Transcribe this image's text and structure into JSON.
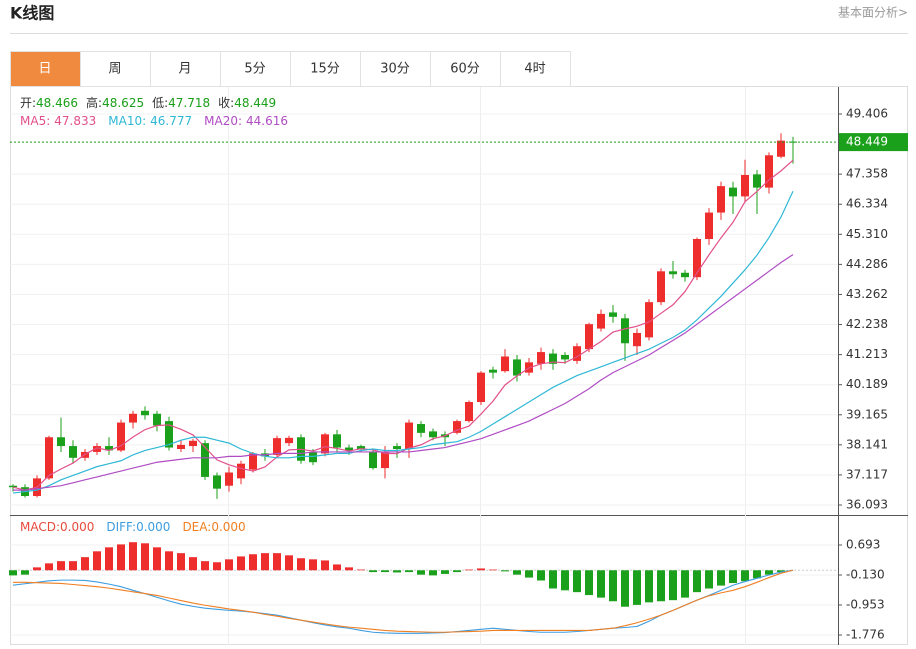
{
  "header": {
    "title": "K线图",
    "link": "基本面分析>"
  },
  "tabs": [
    "日",
    "周",
    "月",
    "5分",
    "15分",
    "30分",
    "60分",
    "4时"
  ],
  "active_tab": 0,
  "chart_data": [
    {
      "type": "candlestick",
      "up_color": "#ee2d2d",
      "down_color": "#1aa01a",
      "ohlc_labels": [
        "开:",
        "高:",
        "低:",
        "收:"
      ],
      "open": [
        36.75,
        36.7,
        36.4,
        37.0,
        38.4,
        38.1,
        37.7,
        37.9,
        38.1,
        37.95,
        38.9,
        39.3,
        39.2,
        38.95,
        38.0,
        38.1,
        38.2,
        37.1,
        36.75,
        37.0,
        37.3,
        37.85,
        37.8,
        38.2,
        38.4,
        37.9,
        37.85,
        38.5,
        38.05,
        38.1,
        37.9,
        37.35,
        38.1,
        38.0,
        38.85,
        38.6,
        38.5,
        38.55,
        38.95,
        39.6,
        40.7,
        40.65,
        41.05,
        40.6,
        40.9,
        41.25,
        41.2,
        41.0,
        41.4,
        42.1,
        42.65,
        42.45,
        41.5,
        41.8,
        43.0,
        44.05,
        44.0,
        43.85,
        45.15,
        46.05,
        46.9,
        46.6,
        47.35,
        46.9,
        47.95,
        48.466
      ],
      "high": [
        36.8,
        36.8,
        37.1,
        38.45,
        39.07,
        38.3,
        38.0,
        38.2,
        38.4,
        39.0,
        39.3,
        39.45,
        39.3,
        39.1,
        38.3,
        38.35,
        38.3,
        37.2,
        37.4,
        37.6,
        37.9,
        38.0,
        38.45,
        38.45,
        38.5,
        38.0,
        38.55,
        38.65,
        38.15,
        38.15,
        38.0,
        38.1,
        38.2,
        39.0,
        38.95,
        38.7,
        38.6,
        39.0,
        39.65,
        40.65,
        40.8,
        41.4,
        41.2,
        41.1,
        41.45,
        41.4,
        41.3,
        41.6,
        42.3,
        42.75,
        42.9,
        42.6,
        42.1,
        43.1,
        44.15,
        44.4,
        44.1,
        45.2,
        46.2,
        47.1,
        47.1,
        47.85,
        47.5,
        48.1,
        48.75,
        48.625
      ],
      "low": [
        36.55,
        36.35,
        36.35,
        36.95,
        37.9,
        37.5,
        37.6,
        37.8,
        37.8,
        37.9,
        38.7,
        39.0,
        38.6,
        37.95,
        37.9,
        37.9,
        36.95,
        36.3,
        36.55,
        36.8,
        37.2,
        37.6,
        37.7,
        38.1,
        37.5,
        37.45,
        37.75,
        37.9,
        37.8,
        37.9,
        37.3,
        37.0,
        37.7,
        37.7,
        38.4,
        38.3,
        38.1,
        38.5,
        38.9,
        39.5,
        40.4,
        40.6,
        40.3,
        40.5,
        40.7,
        40.7,
        40.9,
        40.9,
        41.3,
        42.0,
        42.3,
        41.0,
        41.2,
        41.7,
        42.9,
        43.8,
        43.7,
        43.75,
        44.95,
        45.8,
        46.0,
        46.4,
        46.0,
        46.7,
        47.9,
        47.718
      ],
      "close": [
        36.7,
        36.4,
        37.0,
        38.4,
        38.1,
        37.7,
        37.9,
        38.1,
        37.95,
        38.9,
        39.2,
        39.15,
        38.8,
        38.05,
        38.14,
        38.28,
        37.05,
        36.65,
        37.2,
        37.5,
        37.85,
        37.75,
        38.37,
        38.38,
        37.6,
        37.55,
        38.5,
        38.05,
        37.95,
        38.0,
        37.35,
        37.9,
        38.0,
        38.9,
        38.55,
        38.4,
        38.4,
        38.95,
        39.6,
        40.6,
        40.6,
        41.15,
        40.5,
        40.95,
        41.3,
        40.9,
        41.05,
        41.5,
        42.25,
        42.6,
        42.5,
        41.6,
        41.95,
        43.0,
        44.05,
        43.95,
        43.85,
        45.15,
        46.05,
        46.95,
        46.6,
        47.33,
        46.9,
        48.0,
        48.5,
        48.449
      ],
      "series": [
        {
          "name": "MA5:",
          "color": "#e2508a",
          "values": [
            36.7,
            36.6,
            36.7,
            37.1,
            37.32,
            37.52,
            37.82,
            38.04,
            37.95,
            38.11,
            38.41,
            38.66,
            38.8,
            38.82,
            38.67,
            38.48,
            38.06,
            37.63,
            37.46,
            37.34,
            37.25,
            37.39,
            37.73,
            37.97,
            37.99,
            37.93,
            38.08,
            38.02,
            37.93,
            38.01,
            37.97,
            37.85,
            37.84,
            38.03,
            38.14,
            38.35,
            38.45,
            38.64,
            38.78,
            39.19,
            39.63,
            40.18,
            40.49,
            40.76,
            40.9,
            40.96,
            40.94,
            41.14,
            41.4,
            41.66,
            41.98,
            42.09,
            42.18,
            42.33,
            42.62,
            42.91,
            43.36,
            44.0,
            44.61,
            45.19,
            45.72,
            46.42,
            46.77,
            47.16,
            47.47,
            47.833
          ]
        },
        {
          "name": "MA10:",
          "color": "#2fb8d6",
          "values": [
            36.5,
            36.55,
            36.6,
            36.75,
            36.95,
            37.1,
            37.25,
            37.4,
            37.5,
            37.6,
            37.8,
            37.95,
            38.05,
            38.15,
            38.3,
            38.4,
            38.4,
            38.3,
            38.2,
            38.0,
            37.85,
            37.75,
            37.7,
            37.7,
            37.75,
            37.75,
            37.8,
            37.85,
            37.85,
            37.95,
            38.0,
            37.95,
            37.95,
            38.0,
            38.05,
            38.15,
            38.2,
            38.25,
            38.4,
            38.6,
            38.85,
            39.1,
            39.35,
            39.6,
            39.85,
            40.1,
            40.3,
            40.5,
            40.65,
            40.8,
            40.95,
            41.1,
            41.25,
            41.4,
            41.6,
            41.8,
            42.05,
            42.4,
            42.8,
            43.2,
            43.65,
            44.1,
            44.6,
            45.2,
            45.9,
            46.777
          ]
        },
        {
          "name": "MA20:",
          "color": "#b04cc4",
          "values": [
            36.6,
            36.6,
            36.65,
            36.7,
            36.75,
            36.85,
            36.95,
            37.05,
            37.15,
            37.25,
            37.35,
            37.45,
            37.55,
            37.6,
            37.65,
            37.7,
            37.7,
            37.7,
            37.75,
            37.75,
            37.8,
            37.8,
            37.85,
            37.85,
            37.85,
            37.9,
            37.9,
            37.9,
            37.9,
            37.9,
            37.9,
            37.9,
            37.9,
            37.9,
            37.95,
            38.0,
            38.05,
            38.15,
            38.25,
            38.35,
            38.5,
            38.65,
            38.8,
            38.95,
            39.15,
            39.35,
            39.55,
            39.8,
            40.05,
            40.35,
            40.6,
            40.8,
            41.0,
            41.2,
            41.45,
            41.7,
            41.95,
            42.25,
            42.55,
            42.85,
            43.15,
            43.45,
            43.75,
            44.05,
            44.35,
            44.616
          ]
        }
      ],
      "ylim": [
        35.753,
        50.291
      ],
      "yticks": [
        36.093,
        37.117,
        38.141,
        39.165,
        40.189,
        41.213,
        42.238,
        43.262,
        44.286,
        {
          "value": 45.31,
          "label": "45.310"
        },
        46.334,
        47.358,
        49.406
      ],
      "grid": true
    },
    {
      "type": "macd",
      "up_color": "#ee2d2d",
      "down_color": "#1aa01a",
      "series": [
        {
          "name": "MACD:",
          "color": "#e84a3c",
          "kind": "histogram",
          "legend_value": {
            "value": 0,
            "label": "0.000"
          },
          "values": [
            -0.14,
            -0.12,
            0.08,
            0.19,
            0.25,
            0.25,
            0.36,
            0.52,
            0.63,
            0.71,
            0.77,
            0.74,
            0.63,
            0.52,
            0.47,
            0.36,
            0.25,
            0.22,
            0.3,
            0.38,
            0.44,
            0.47,
            0.47,
            0.41,
            0.33,
            0.3,
            0.27,
            0.16,
            0.08,
            0.02,
            -0.05,
            -0.05,
            -0.06,
            -0.05,
            -0.12,
            -0.14,
            -0.1,
            -0.05,
            0.02,
            0.05,
            0.02,
            -0.03,
            -0.12,
            -0.2,
            -0.28,
            -0.5,
            -0.55,
            -0.6,
            -0.68,
            -0.75,
            -0.85,
            -1.0,
            -0.95,
            -0.88,
            -0.85,
            -0.82,
            -0.75,
            -0.6,
            -0.5,
            -0.42,
            -0.35,
            -0.3,
            -0.22,
            -0.12,
            -0.05,
            0
          ]
        },
        {
          "name": "DIFF:",
          "color": "#3d9de0",
          "kind": "line",
          "legend_value": {
            "value": 0,
            "label": "0.000"
          },
          "values": [
            -0.41,
            -0.37,
            -0.33,
            -0.29,
            -0.27,
            -0.27,
            -0.28,
            -0.32,
            -0.38,
            -0.45,
            -0.55,
            -0.64,
            -0.74,
            -0.84,
            -0.93,
            -0.99,
            -1.04,
            -1.07,
            -1.1,
            -1.12,
            -1.15,
            -1.19,
            -1.23,
            -1.3,
            -1.37,
            -1.44,
            -1.5,
            -1.55,
            -1.59,
            -1.65,
            -1.7,
            -1.72,
            -1.73,
            -1.73,
            -1.73,
            -1.72,
            -1.71,
            -1.68,
            -1.65,
            -1.62,
            -1.59,
            -1.62,
            -1.65,
            -1.68,
            -1.7,
            -1.7,
            -1.7,
            -1.68,
            -1.65,
            -1.62,
            -1.59,
            -1.57,
            -1.54,
            -1.4,
            -1.23,
            -1.1,
            -0.96,
            -0.82,
            -0.69,
            -0.55,
            -0.41,
            -0.31,
            -0.22,
            -0.13,
            -0.05,
            0
          ]
        },
        {
          "name": "DEA:",
          "color": "#f07f22",
          "kind": "line",
          "legend_value": {
            "value": 0,
            "label": "0.000"
          },
          "values": [
            -0.33,
            -0.33,
            -0.34,
            -0.35,
            -0.36,
            -0.39,
            -0.42,
            -0.45,
            -0.49,
            -0.54,
            -0.59,
            -0.64,
            -0.69,
            -0.76,
            -0.83,
            -0.9,
            -0.96,
            -1.01,
            -1.06,
            -1.1,
            -1.15,
            -1.21,
            -1.26,
            -1.32,
            -1.37,
            -1.42,
            -1.47,
            -1.52,
            -1.56,
            -1.59,
            -1.62,
            -1.65,
            -1.67,
            -1.68,
            -1.69,
            -1.7,
            -1.7,
            -1.69,
            -1.68,
            -1.67,
            -1.65,
            -1.65,
            -1.65,
            -1.65,
            -1.65,
            -1.65,
            -1.65,
            -1.65,
            -1.65,
            -1.62,
            -1.59,
            -1.52,
            -1.44,
            -1.34,
            -1.23,
            -1.1,
            -0.96,
            -0.82,
            -0.7,
            -0.62,
            -0.55,
            -0.45,
            -0.33,
            -0.2,
            -0.08,
            0
          ]
        }
      ],
      "ylim": [
        -2.05,
        1.489
      ],
      "yticks": [
        -1.776,
        -0.953,
        {
          "value": -0.13,
          "label": "-0.130"
        },
        0.693
      ],
      "grid": true
    }
  ]
}
